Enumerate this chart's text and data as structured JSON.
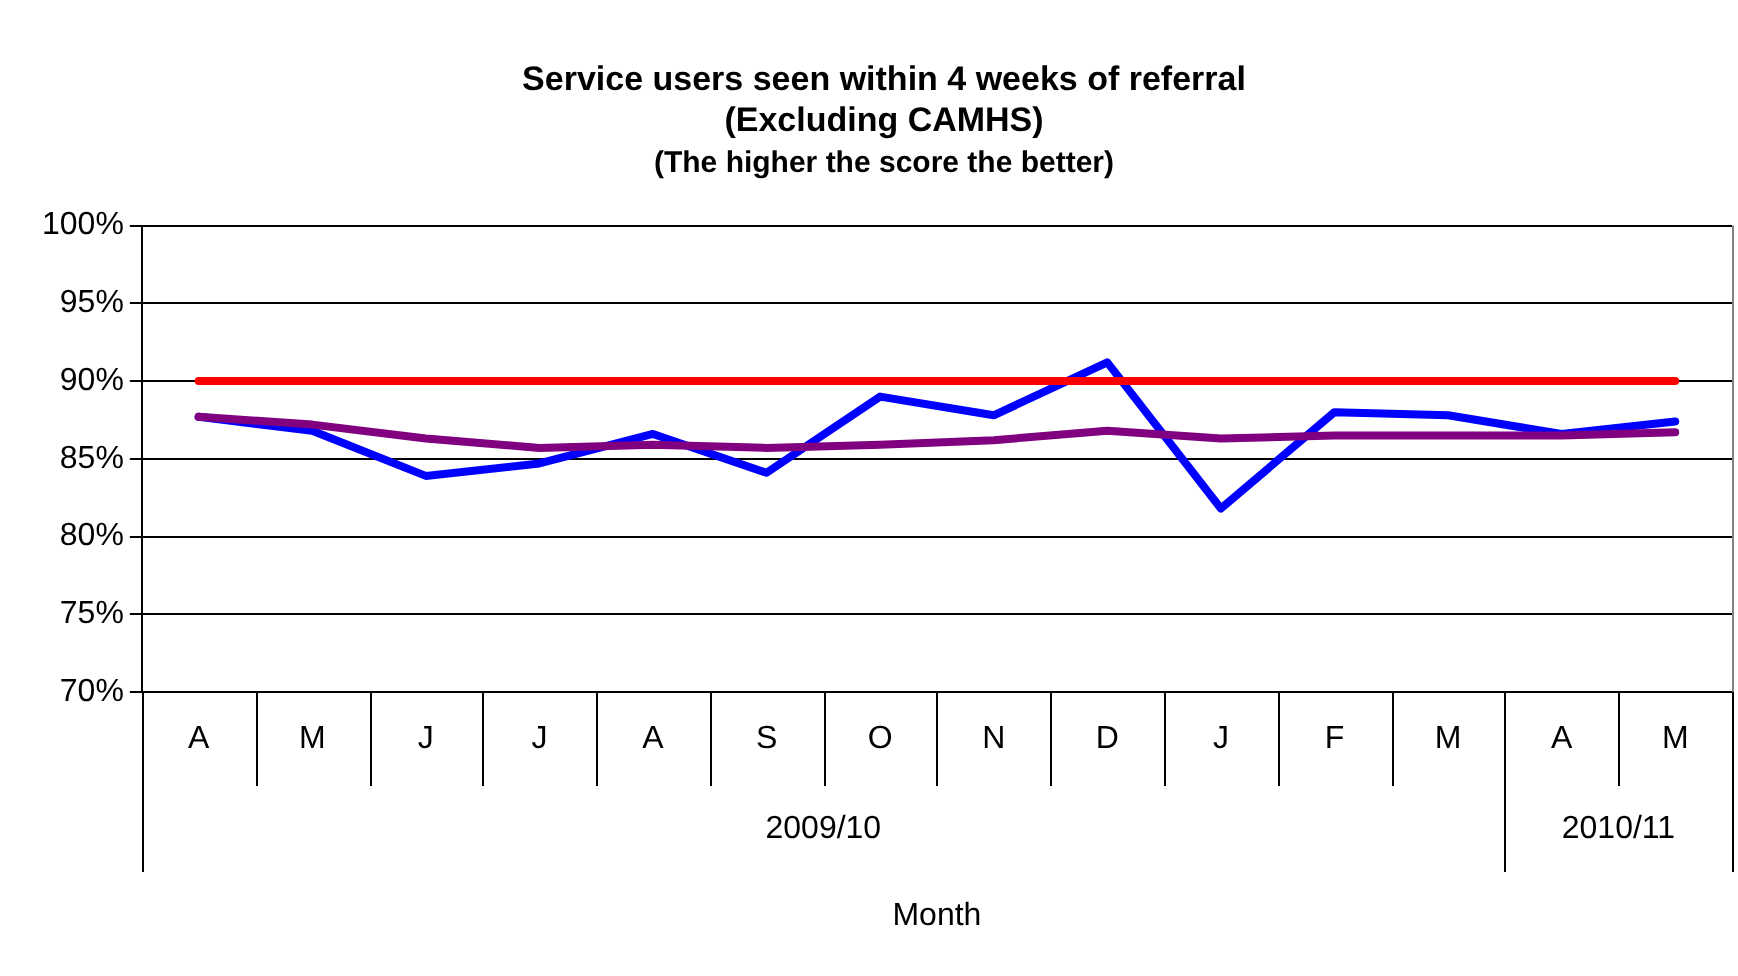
{
  "chart_data": {
    "type": "line",
    "title": "Service users seen within 4 weeks of referral\n(Excluding CAMHS)",
    "subtitle": "(The higher the score the better)",
    "xlabel": "Month",
    "categories": [
      "A",
      "M",
      "J",
      "J",
      "A",
      "S",
      "O",
      "N",
      "D",
      "J",
      "F",
      "M",
      "A",
      "M"
    ],
    "annotations": [
      "2009/10",
      "2010/11"
    ],
    "series": [
      {
        "color": "#ff0000",
        "values": [
          90,
          90,
          90,
          90,
          90,
          90,
          90,
          90,
          90,
          90,
          90,
          90,
          90,
          90
        ]
      },
      {
        "color": "#800080",
        "values": [
          87.7,
          87.2,
          86.3,
          85.7,
          85.9,
          85.7,
          85.9,
          86.2,
          86.8,
          86.3,
          86.5,
          86.5,
          86.5,
          86.7
        ]
      },
      {
        "color": "#0000ff",
        "values": [
          87.7,
          86.8,
          83.9,
          84.7,
          86.6,
          84.1,
          89.0,
          87.8,
          91.2,
          81.8,
          88.0,
          87.8,
          86.6,
          87.4
        ]
      }
    ],
    "ylim": [
      70,
      100
    ],
    "yticks": [
      {
        "value": 70,
        "label": "70%"
      },
      {
        "value": 75,
        "label": "75%"
      },
      {
        "value": 80,
        "label": "80%"
      },
      {
        "value": 85,
        "label": "85%"
      },
      {
        "value": 90,
        "label": "90%"
      },
      {
        "value": 95,
        "label": "95%"
      },
      {
        "value": 100,
        "label": "100%"
      }
    ],
    "grid": "y",
    "marker": "none",
    "line_style": "solid",
    "legend": false
  }
}
